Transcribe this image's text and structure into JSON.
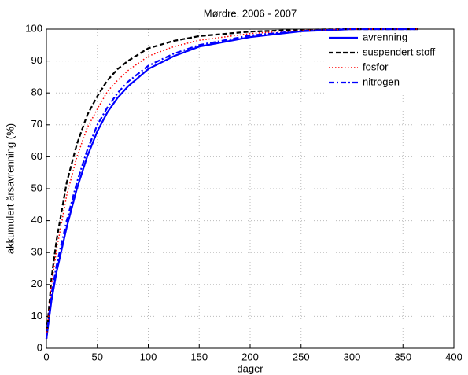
{
  "chart_data": {
    "type": "line",
    "title": "Mørdre, 2006 - 2007",
    "x_label": "dager",
    "y_label": "akkumulert årsavrenning (%)",
    "x": [
      0,
      5,
      10,
      20,
      30,
      40,
      50,
      60,
      70,
      80,
      100,
      125,
      150,
      200,
      250,
      300,
      365
    ],
    "series": [
      {
        "name": "avrenning",
        "color": "#0000ff",
        "style": "solid",
        "values": [
          3,
          15,
          24,
          38,
          50,
          60,
          68,
          74,
          78.5,
          82,
          87.5,
          91.5,
          94.5,
          97.5,
          99.3,
          100,
          100
        ]
      },
      {
        "name": "suspendert stoff",
        "color": "#000000",
        "style": "dashed",
        "values": [
          3,
          22,
          34,
          52,
          64,
          73,
          79,
          84,
          87.5,
          90,
          94,
          96.3,
          97.8,
          99.2,
          99.8,
          100,
          100
        ]
      },
      {
        "name": "fosfor",
        "color": "#ff0000",
        "style": "dotted",
        "values": [
          3,
          20,
          31,
          48,
          60,
          69,
          75,
          80.5,
          84,
          87,
          91.5,
          94.5,
          96.5,
          98.6,
          99.6,
          100,
          100
        ]
      },
      {
        "name": "nitrogen",
        "color": "#0000ff",
        "style": "dashdot",
        "values": [
          3,
          17,
          26,
          40,
          52,
          62,
          70,
          75.5,
          80,
          83.5,
          88.5,
          92.3,
          95,
          98,
          99.4,
          100,
          100
        ]
      }
    ],
    "xlim": [
      0,
      400
    ],
    "xticks": [
      0,
      50,
      100,
      150,
      200,
      250,
      300,
      350,
      400
    ],
    "ylim": [
      0,
      100
    ],
    "yticks": [
      0,
      10,
      20,
      30,
      40,
      50,
      60,
      70,
      80,
      90,
      100
    ],
    "grid": true,
    "legend": "top-right"
  }
}
